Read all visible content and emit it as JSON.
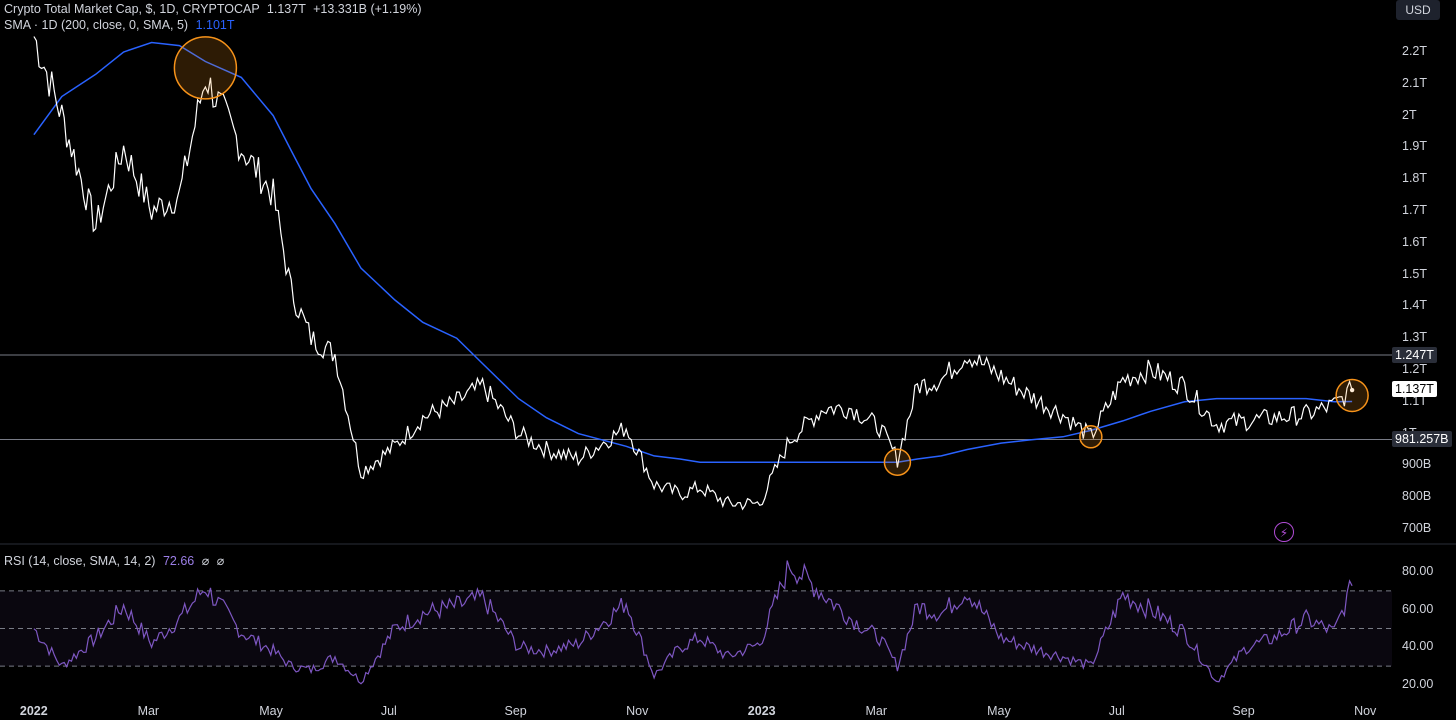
{
  "header": {
    "symbol": "Crypto Total Market Cap, $, 1D, CRYPTOCAP",
    "last_value": "1.137T",
    "change": "+13.331B (+1.19%)",
    "sma_label": "SMA · 1D (200, close, 0, SMA, 5)",
    "sma_value": "1.101T",
    "currency_button": "USD"
  },
  "rsi_header": {
    "label": "RSI (14, close, SMA, 14, 2)",
    "value": "72.66",
    "extra1": "⌀",
    "extra2": "⌀"
  },
  "colors": {
    "price": "#ffffff",
    "sma": "#2962ff",
    "rsi": "#7e57c2",
    "highlight_circle": "#f7931a",
    "level_line": "#787b86"
  },
  "price_axis": {
    "ticks": [
      "2.2T",
      "2.1T",
      "2T",
      "1.9T",
      "1.8T",
      "1.7T",
      "1.6T",
      "1.5T",
      "1.4T",
      "1.3T",
      "1.2T",
      "1.1T",
      "1T",
      "900B",
      "800B",
      "700B"
    ],
    "badges": {
      "upper_level": "1.247T",
      "current": "1.137T",
      "lower_level": "981.257B"
    }
  },
  "rsi_axis": {
    "ticks": [
      "80.00",
      "60.00",
      "40.00",
      "20.00"
    ]
  },
  "time_axis": [
    "2022",
    "Mar",
    "May",
    "Jul",
    "Sep",
    "Nov",
    "2023",
    "Mar",
    "May",
    "Jul",
    "Sep",
    "Nov"
  ],
  "chart_data": [
    {
      "type": "line",
      "title": "Crypto Total Market Cap, $, 1D, CRYPTOCAP",
      "y_unit": "T USD",
      "ylim": [
        0.68,
        2.32
      ],
      "x": [
        "2022-01-01",
        "2022-01-15",
        "2022-02-01",
        "2022-02-15",
        "2022-03-01",
        "2022-03-15",
        "2022-03-28",
        "2022-04-15",
        "2022-05-01",
        "2022-05-10",
        "2022-05-20",
        "2022-06-01",
        "2022-06-14",
        "2022-07-01",
        "2022-07-15",
        "2022-08-01",
        "2022-08-14",
        "2022-09-01",
        "2022-09-15",
        "2022-10-01",
        "2022-10-25",
        "2022-11-08",
        "2022-11-21",
        "2022-12-01",
        "2022-12-15",
        "2022-12-31",
        "2023-01-15",
        "2023-02-01",
        "2023-02-15",
        "2023-03-01",
        "2023-03-10",
        "2023-03-20",
        "2023-04-01",
        "2023-04-14",
        "2023-05-01",
        "2023-05-15",
        "2023-06-01",
        "2023-06-15",
        "2023-07-01",
        "2023-07-15",
        "2023-08-01",
        "2023-08-17",
        "2023-09-01",
        "2023-09-15",
        "2023-10-01",
        "2023-10-15",
        "2023-10-24"
      ],
      "series": [
        {
          "name": "Crypto Total Market Cap, $, 1D, CRYPTOCAP",
          "values": [
            2.25,
            2.0,
            1.65,
            1.9,
            1.7,
            1.75,
            2.12,
            1.9,
            1.75,
            1.45,
            1.3,
            1.25,
            0.88,
            0.96,
            1.05,
            1.1,
            1.15,
            1.0,
            0.95,
            0.92,
            1.02,
            0.84,
            0.81,
            0.83,
            0.78,
            0.78,
            0.98,
            1.08,
            1.08,
            1.02,
            0.92,
            1.15,
            1.17,
            1.25,
            1.18,
            1.12,
            1.06,
            0.99,
            1.17,
            1.2,
            1.15,
            1.03,
            1.04,
            1.05,
            1.06,
            1.09,
            1.137
          ]
        },
        {
          "name": "SMA · 1D (200, close, 0, SMA, 5)",
          "values": [
            1.94,
            2.06,
            2.13,
            2.2,
            2.23,
            2.22,
            2.17,
            2.12,
            2.0,
            1.89,
            1.77,
            1.66,
            1.52,
            1.42,
            1.35,
            1.3,
            1.22,
            1.11,
            1.05,
            1.0,
            0.96,
            0.93,
            0.92,
            0.91,
            0.91,
            0.91,
            0.91,
            0.91,
            0.91,
            0.91,
            0.91,
            0.92,
            0.93,
            0.95,
            0.97,
            0.98,
            0.99,
            1.01,
            1.04,
            1.07,
            1.1,
            1.11,
            1.11,
            1.11,
            1.11,
            1.1,
            1.101
          ]
        }
      ],
      "levels": [
        1.247,
        0.981257
      ]
    },
    {
      "type": "line",
      "title": "RSI (14, close, SMA, 14, 2)",
      "ylim": [
        13,
        87
      ],
      "x": [
        "2022-01-01",
        "2022-01-15",
        "2022-02-01",
        "2022-02-15",
        "2022-03-01",
        "2022-03-15",
        "2022-03-28",
        "2022-04-15",
        "2022-05-01",
        "2022-05-10",
        "2022-05-20",
        "2022-06-01",
        "2022-06-14",
        "2022-07-01",
        "2022-07-15",
        "2022-08-01",
        "2022-08-14",
        "2022-09-01",
        "2022-09-15",
        "2022-10-01",
        "2022-10-25",
        "2022-11-08",
        "2022-11-21",
        "2022-12-01",
        "2022-12-15",
        "2022-12-31",
        "2023-01-15",
        "2023-02-01",
        "2023-02-15",
        "2023-03-01",
        "2023-03-10",
        "2023-03-20",
        "2023-04-01",
        "2023-04-14",
        "2023-05-01",
        "2023-05-15",
        "2023-06-01",
        "2023-06-15",
        "2023-07-01",
        "2023-07-15",
        "2023-08-01",
        "2023-08-17",
        "2023-09-01",
        "2023-09-15",
        "2023-10-01",
        "2023-10-15",
        "2023-10-24"
      ],
      "series": [
        {
          "name": "RSI (14, close, SMA, 14, 2)",
          "values": [
            50,
            30,
            45,
            62,
            42,
            55,
            72,
            48,
            38,
            30,
            28,
            35,
            22,
            50,
            58,
            62,
            66,
            40,
            38,
            42,
            64,
            25,
            40,
            45,
            35,
            42,
            84,
            68,
            55,
            45,
            30,
            62,
            58,
            70,
            45,
            40,
            35,
            30,
            68,
            60,
            48,
            22,
            40,
            45,
            55,
            48,
            72.66
          ]
        }
      ],
      "levels": [
        70,
        50,
        30
      ]
    }
  ]
}
